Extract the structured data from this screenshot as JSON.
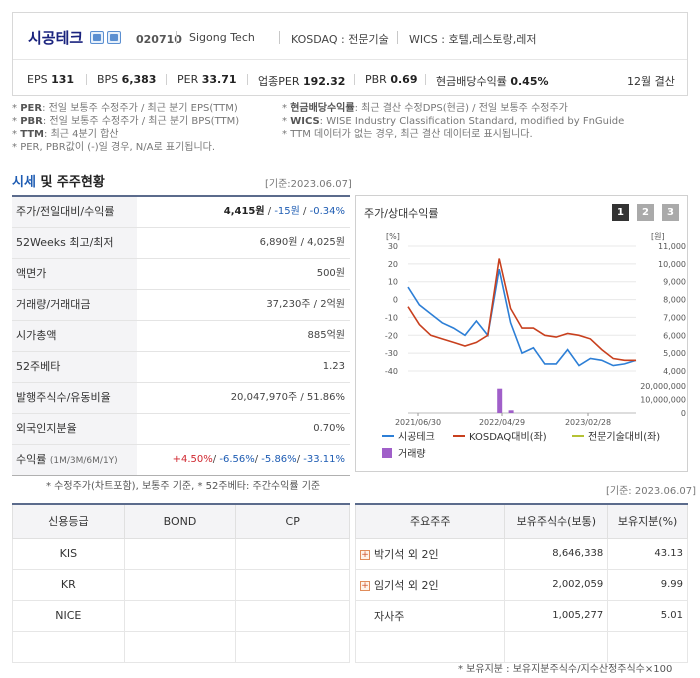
{
  "company": {
    "name": "시공테크",
    "code": "020710",
    "english_name": "Sigong Tech",
    "market": "KOSDAQ : 전문기술",
    "wics": "WICS : 호텔,레스토랑,레저",
    "icons": [
      "home-icon",
      "ir-icon"
    ]
  },
  "metrics": [
    {
      "label": "EPS",
      "value": "131"
    },
    {
      "label": "BPS",
      "value": "6,383"
    },
    {
      "label": "PER",
      "value": "33.71"
    },
    {
      "label": "업종PER",
      "value": "192.32"
    },
    {
      "label": "PBR",
      "value": "0.69"
    },
    {
      "label": "현금배당수익률",
      "value": "0.45%"
    }
  ],
  "settlement": "12월 결산",
  "notes": {
    "per_label": "PER",
    "per_text": ": 전일 보통주 수정주가 / 최근 분기 EPS(TTM)",
    "pbr_label": "PBR",
    "pbr_text": ": 전일 보통주 수정주가 / 최근 분기 BPS(TTM)",
    "ttm_label": "TTM",
    "ttm_text": ": 최근 4분기 합산",
    "neg_text": "PER, PBR값이 (-)일 경우, N/A로 표기됩니다.",
    "div_label": "현금배당수익률",
    "div_text": ": 최근 결산 수정DPS(현금) / 전일 보통주 수정주가",
    "wics_label": "WICS",
    "wics_text": ": WISE Industry Classification Standard, modified by FnGuide",
    "ttm2_text": "TTM 데이터가 없는 경우, 최근 결산 데이터로 표시됩니다."
  },
  "section": {
    "title_hl": "시세",
    "title_rest": " 및 주주현황",
    "basis": "[기준:2023.06.07]"
  },
  "price_table": [
    {
      "label": "주가/전일대비/수익률",
      "value": "",
      "price": "4,415원",
      "chg": "-15원",
      "rate": "-0.34%"
    },
    {
      "label": "52Weeks 최고/최저",
      "value": "6,890원 / 4,025원"
    },
    {
      "label": "액면가",
      "value": "500원"
    },
    {
      "label": "거래량/거래대금",
      "value": "37,230주 / 2억원"
    },
    {
      "label": "시가총액",
      "value": "885억원"
    },
    {
      "label": "52주베타",
      "value": "1.23"
    },
    {
      "label": "발행주식수/유동비율",
      "value": "20,047,970주 / 51.86%"
    },
    {
      "label": "외국인지분율",
      "value": "0.70%"
    },
    {
      "label": "수익률",
      "sub": "(1M/3M/6M/1Y)",
      "r1": "+4.50%",
      "r2": "-6.56%",
      "r3": "-5.86%",
      "r4": "-33.11%"
    }
  ],
  "price_footnote": "* 수정주가(차트포함), 보통주 기준, * 52주베타: 주간수익률 기준",
  "chart": {
    "title": "주가/상대수익률",
    "pages": [
      "1",
      "2",
      "3"
    ],
    "colors": {
      "stock": "#2d7fd6",
      "kosdaq": "#c8401e",
      "sector": "#b5c234",
      "volume": "#a05fc9"
    }
  },
  "chart_data": {
    "type": "line",
    "x_ticks": [
      "2021/06/30",
      "2022/04/29",
      "2023/02/28"
    ],
    "left_axis_label": "[%]",
    "left_ticks": [
      "30",
      "20",
      "10",
      "0",
      "-10",
      "-20",
      "-30",
      "-40"
    ],
    "right_axis_label": "[원]",
    "right_ticks": [
      "11,000",
      "10,000",
      "9,000",
      "8,000",
      "7,000",
      "6,000",
      "5,000",
      "4,000"
    ],
    "volume_ticks": [
      "20,000,000",
      "10,000,000",
      "0"
    ],
    "ylim_left": [
      -40,
      30
    ],
    "series": [
      {
        "name": "시공테크",
        "values": [
          7,
          -3,
          -8,
          -13,
          -16,
          -20,
          -12,
          -20,
          17,
          -13,
          -30,
          -27,
          -36,
          -36,
          -28,
          -37,
          -33,
          -34,
          -37,
          -36,
          -34
        ]
      },
      {
        "name": "KOSDAQ대비(좌)",
        "values": [
          -4,
          -14,
          -20,
          -22,
          -24,
          -26,
          -24,
          -20,
          23,
          -5,
          -16,
          -16,
          -20,
          -21,
          -19,
          -20,
          -22,
          -28,
          -33,
          -34,
          -34
        ]
      },
      {
        "name": "전문기술대비(좌)",
        "values": []
      }
    ],
    "volume_label": "거래량",
    "volume_values": [
      0,
      0,
      0,
      0,
      0,
      0,
      0,
      0,
      18000000,
      2000000,
      0,
      0,
      0,
      0,
      0,
      0,
      0,
      0,
      0,
      0,
      0
    ]
  },
  "credit": {
    "headers": [
      "신용등급",
      "BOND",
      "CP"
    ],
    "rows": [
      "KIS",
      "KR",
      "NICE",
      ""
    ]
  },
  "holders": {
    "basis": "[기준: 2023.06.07]",
    "headers": [
      "주요주주",
      "보유주식수(보통)",
      "보유지분(%)"
    ],
    "rows": [
      {
        "name": "박기석 외 2인",
        "shares": "8,646,338",
        "pct": "43.13",
        "expand": true
      },
      {
        "name": "임기석 외 2인",
        "shares": "2,002,059",
        "pct": "9.99",
        "expand": true
      },
      {
        "name": "자사주",
        "shares": "1,005,277",
        "pct": "5.01",
        "expand": false
      },
      {
        "name": "",
        "shares": "",
        "pct": "",
        "expand": false
      }
    ],
    "footnote": "* 보유지분 : 보유지분주식수/지수산정주식수×100"
  }
}
